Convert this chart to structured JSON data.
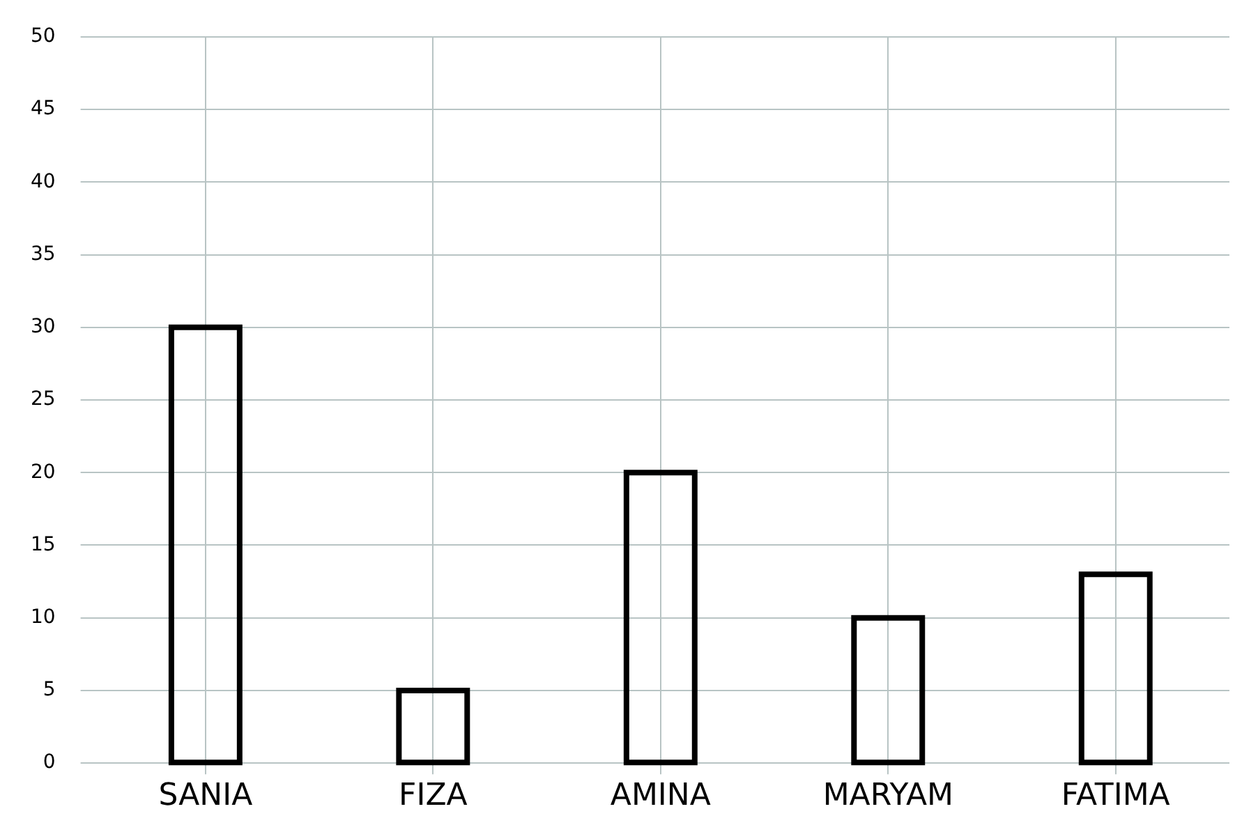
{
  "chart_data": {
    "type": "bar",
    "categories": [
      "SANIA",
      "FIZA",
      "AMINA",
      "MARYAM",
      "FATIMA"
    ],
    "values": [
      30,
      5,
      20,
      10,
      13
    ],
    "color": "#000000",
    "ylim": [
      0,
      50
    ],
    "yticks": [
      0,
      5,
      10,
      15,
      20,
      25,
      30,
      35,
      40,
      45,
      50
    ],
    "grid": true
  }
}
